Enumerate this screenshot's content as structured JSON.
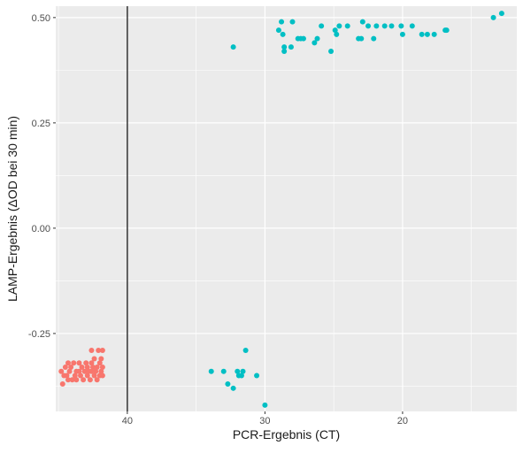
{
  "chart_data": {
    "type": "scatter",
    "xlabel": "PCR-Ergebnis (CT)",
    "ylabel": "LAMP-Ergebnis (ΔOD bei 30 min)",
    "x_reversed": true,
    "xlim": [
      45.2,
      11.7
    ],
    "ylim": [
      -0.435,
      0.527
    ],
    "x_ticks": [
      40,
      30,
      20
    ],
    "x_tick_labels": [
      "40",
      "30",
      "20"
    ],
    "y_ticks": [
      0.5,
      0.25,
      0.0,
      -0.25
    ],
    "y_tick_labels": [
      "0.50",
      "0.25",
      "0.00",
      "-0.25"
    ],
    "grid": true,
    "legend": "none",
    "vline": {
      "x": 40,
      "color": "#333333"
    },
    "colors": {
      "panel": "#ebebeb",
      "grid": "#ffffff",
      "negative": "#f8766d",
      "positive": "#00bfc4"
    },
    "series": [
      {
        "color": "#f8766d",
        "points": [
          [
            44.7,
            -0.37
          ],
          [
            44.8,
            -0.34
          ],
          [
            44.6,
            -0.35
          ],
          [
            44.5,
            -0.33
          ],
          [
            44.4,
            -0.35
          ],
          [
            44.3,
            -0.32
          ],
          [
            44.3,
            -0.36
          ],
          [
            44.2,
            -0.34
          ],
          [
            44.1,
            -0.33
          ],
          [
            44.0,
            -0.36
          ],
          [
            43.9,
            -0.32
          ],
          [
            43.8,
            -0.35
          ],
          [
            43.7,
            -0.34
          ],
          [
            43.7,
            -0.36
          ],
          [
            43.5,
            -0.32
          ],
          [
            43.5,
            -0.34
          ],
          [
            43.4,
            -0.35
          ],
          [
            43.3,
            -0.33
          ],
          [
            43.2,
            -0.36
          ],
          [
            43.1,
            -0.34
          ],
          [
            43.0,
            -0.32
          ],
          [
            42.9,
            -0.35
          ],
          [
            42.9,
            -0.33
          ],
          [
            42.8,
            -0.34
          ],
          [
            42.7,
            -0.36
          ],
          [
            42.6,
            -0.32
          ],
          [
            42.6,
            -0.34
          ],
          [
            42.5,
            -0.33
          ],
          [
            42.4,
            -0.35
          ],
          [
            42.4,
            -0.31
          ],
          [
            42.3,
            -0.34
          ],
          [
            42.2,
            -0.36
          ],
          [
            42.2,
            -0.33
          ],
          [
            42.1,
            -0.29
          ],
          [
            42.0,
            -0.35
          ],
          [
            42.0,
            -0.32
          ],
          [
            41.9,
            -0.34
          ],
          [
            41.8,
            -0.33
          ],
          [
            41.8,
            -0.29
          ],
          [
            41.8,
            -0.35
          ],
          [
            41.9,
            -0.31
          ],
          [
            42.6,
            -0.29
          ]
        ]
      },
      {
        "color": "#00bfc4",
        "points": [
          [
            32.3,
            0.43
          ],
          [
            29.0,
            0.47
          ],
          [
            28.8,
            0.49
          ],
          [
            28.7,
            0.46
          ],
          [
            28.6,
            0.42
          ],
          [
            28.6,
            0.43
          ],
          [
            28.1,
            0.43
          ],
          [
            28.0,
            0.49
          ],
          [
            27.6,
            0.45
          ],
          [
            27.4,
            0.45
          ],
          [
            27.2,
            0.45
          ],
          [
            26.4,
            0.44
          ],
          [
            26.2,
            0.45
          ],
          [
            25.9,
            0.48
          ],
          [
            25.2,
            0.42
          ],
          [
            24.9,
            0.47
          ],
          [
            24.8,
            0.46
          ],
          [
            24.6,
            0.48
          ],
          [
            24.0,
            0.48
          ],
          [
            23.2,
            0.45
          ],
          [
            23.0,
            0.45
          ],
          [
            22.9,
            0.49
          ],
          [
            22.5,
            0.48
          ],
          [
            22.1,
            0.45
          ],
          [
            21.9,
            0.48
          ],
          [
            21.3,
            0.48
          ],
          [
            20.8,
            0.48
          ],
          [
            20.1,
            0.48
          ],
          [
            20.0,
            0.46
          ],
          [
            19.3,
            0.48
          ],
          [
            18.6,
            0.46
          ],
          [
            18.2,
            0.46
          ],
          [
            17.7,
            0.46
          ],
          [
            16.9,
            0.47
          ],
          [
            16.8,
            0.47
          ],
          [
            13.4,
            0.5
          ],
          [
            12.8,
            0.51
          ],
          [
            33.9,
            -0.34
          ],
          [
            33.0,
            -0.34
          ],
          [
            32.7,
            -0.37
          ],
          [
            32.3,
            -0.38
          ],
          [
            32.0,
            -0.34
          ],
          [
            31.9,
            -0.35
          ],
          [
            31.7,
            -0.35
          ],
          [
            31.6,
            -0.34
          ],
          [
            31.4,
            -0.29
          ],
          [
            30.6,
            -0.35
          ],
          [
            30.0,
            -0.42
          ]
        ]
      }
    ]
  }
}
